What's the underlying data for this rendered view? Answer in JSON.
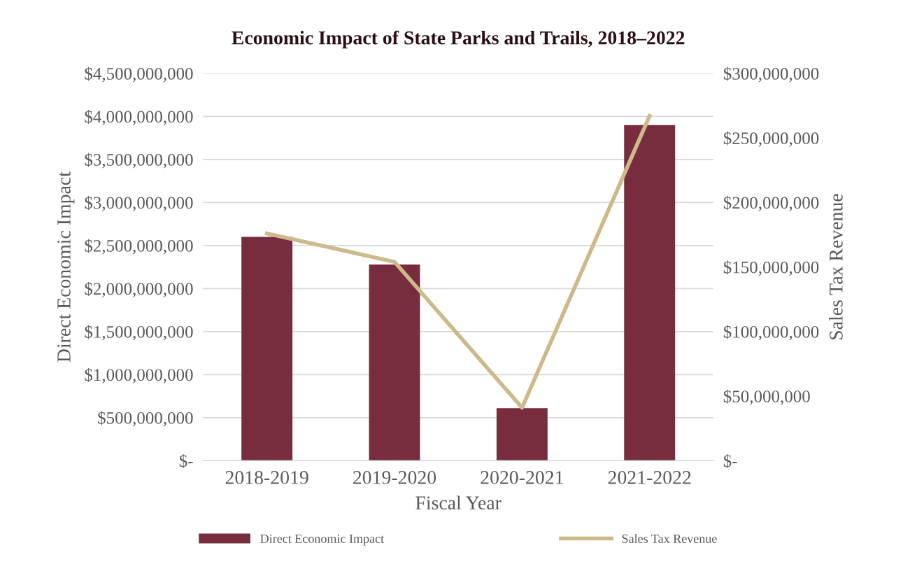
{
  "chart_data": {
    "type": "bar",
    "title": "Economic Impact of State Parks and Trails, 2018–2022",
    "xlabel": "Fiscal Year",
    "ylabel": "Direct Economic Impact",
    "y2label": "Sales Tax Revenue",
    "categories": [
      "2018-2019",
      "2019-2020",
      "2020-2021",
      "2021-2022"
    ],
    "series": [
      {
        "name": "Direct Economic Impact",
        "color": "#772d3e",
        "values": [
          2600000000,
          2280000000,
          610000000,
          3900000000
        ]
      },
      {
        "name": "Sales Tax Revenue",
        "type": "line",
        "axis": "y2",
        "color": "#cdb98a",
        "values": [
          176000000,
          154000000,
          41000000,
          267000000
        ]
      }
    ],
    "ylim": [
      0,
      4500000000
    ],
    "yticks": [
      {
        "value": 0,
        "label": "$-"
      },
      {
        "value": 500000000,
        "label": "$500,000,000"
      },
      {
        "value": 1000000000,
        "label": "$1,000,000,000"
      },
      {
        "value": 1500000000,
        "label": "$1,500,000,000"
      },
      {
        "value": 2000000000,
        "label": "$2,000,000,000"
      },
      {
        "value": 2500000000,
        "label": "$2,500,000,000"
      },
      {
        "value": 3000000000,
        "label": "$3,000,000,000"
      },
      {
        "value": 3500000000,
        "label": "$3,500,000,000"
      },
      {
        "value": 4000000000,
        "label": "$4,000,000,000"
      },
      {
        "value": 4500000000,
        "label": "$4,500,000,000"
      }
    ],
    "y2lim": [
      0,
      300000000
    ],
    "y2ticks": [
      {
        "value": 0,
        "label": "$-"
      },
      {
        "value": 50000000,
        "label": "$50,000,000"
      },
      {
        "value": 100000000,
        "label": "$100,000,000"
      },
      {
        "value": 150000000,
        "label": "$150,000,000"
      },
      {
        "value": 200000000,
        "label": "$200,000,000"
      },
      {
        "value": 250000000,
        "label": "$250,000,000"
      },
      {
        "value": 300000000,
        "label": "$300,000,000"
      }
    ],
    "grid": "y",
    "legend": "bottom",
    "marker": "none",
    "line_style": "solid"
  }
}
